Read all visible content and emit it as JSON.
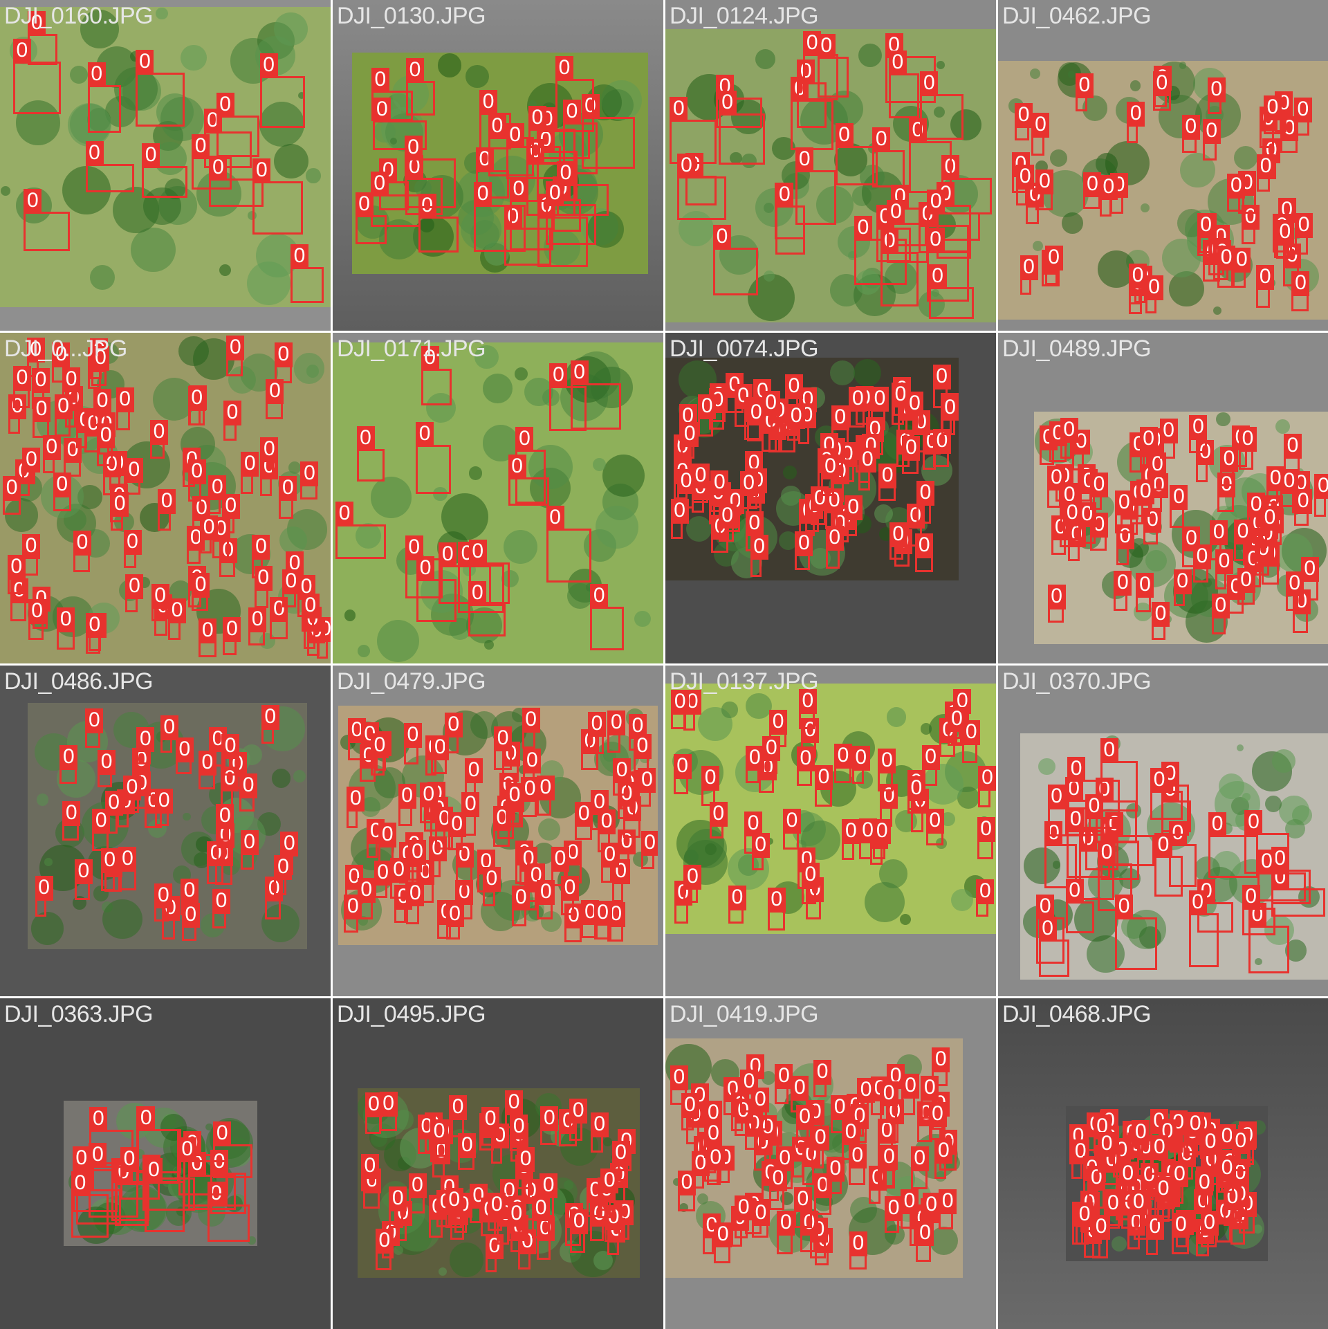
{
  "colors": {
    "box": "#e8322e",
    "label_text": "#e6e6e6",
    "background_dark": "#4a4a4a",
    "background_mid": "#8a8a8a",
    "grass": "#9cb36a",
    "tree_dark": "#3d5a2a",
    "soil": "#b8aa8a"
  },
  "detection_class": "0",
  "tiles": [
    {
      "label": "DJI_0160.JPG",
      "boxes": 14
    },
    {
      "label": "DJI_0130.JPG",
      "boxes": 27
    },
    {
      "label": "DJI_0124.JPG",
      "boxes": 30
    },
    {
      "label": "DJI_0462.JPG",
      "boxes": 49
    },
    {
      "label": "DJI_0...JPG",
      "boxes": 180
    },
    {
      "label": "DJI_0171.JPG",
      "boxes": 16
    },
    {
      "label": "DJI_0074.JPG",
      "boxes": 100
    },
    {
      "label": "DJI_0489.JPG",
      "boxes": 70
    },
    {
      "label": "DJI_0486.JPG",
      "boxes": 40
    },
    {
      "label": "DJI_0479.JPG",
      "boxes": 90
    },
    {
      "label": "DJI_0137.JPG",
      "boxes": 45
    },
    {
      "label": "DJI_0370.JPG",
      "boxes": 30
    },
    {
      "label": "DJI_0363.JPG",
      "boxes": 18
    },
    {
      "label": "DJI_0495.JPG",
      "boxes": 60
    },
    {
      "label": "DJI_0419.JPG",
      "boxes": 85
    },
    {
      "label": "DJI_0468.JPG",
      "boxes": 100
    }
  ]
}
